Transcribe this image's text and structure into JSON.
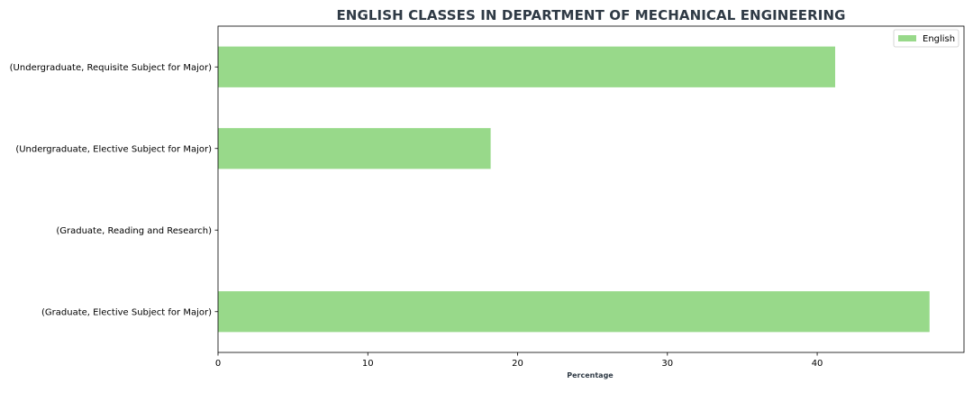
{
  "chart_data": {
    "type": "bar",
    "orientation": "horizontal",
    "title": "ENGLISH CLASSES IN DEPARTMENT OF MECHANICAL ENGINEERING",
    "xlabel": "Percentage",
    "ylabel": "",
    "categories": [
      "(Undergraduate, Requisite Subject for Major)",
      "(Undergraduate, Elective Subject for Major)",
      "(Graduate, Reading and Research)",
      "(Graduate, Elective Subject for Major)"
    ],
    "series": [
      {
        "name": "English",
        "values": [
          41.2,
          18.2,
          0,
          47.5
        ],
        "color": "#98d98a"
      }
    ],
    "xlim": [
      0,
      49.8
    ],
    "xticks": [
      0,
      10,
      20,
      30,
      40
    ],
    "grid": false,
    "legend_position": "top-right"
  }
}
